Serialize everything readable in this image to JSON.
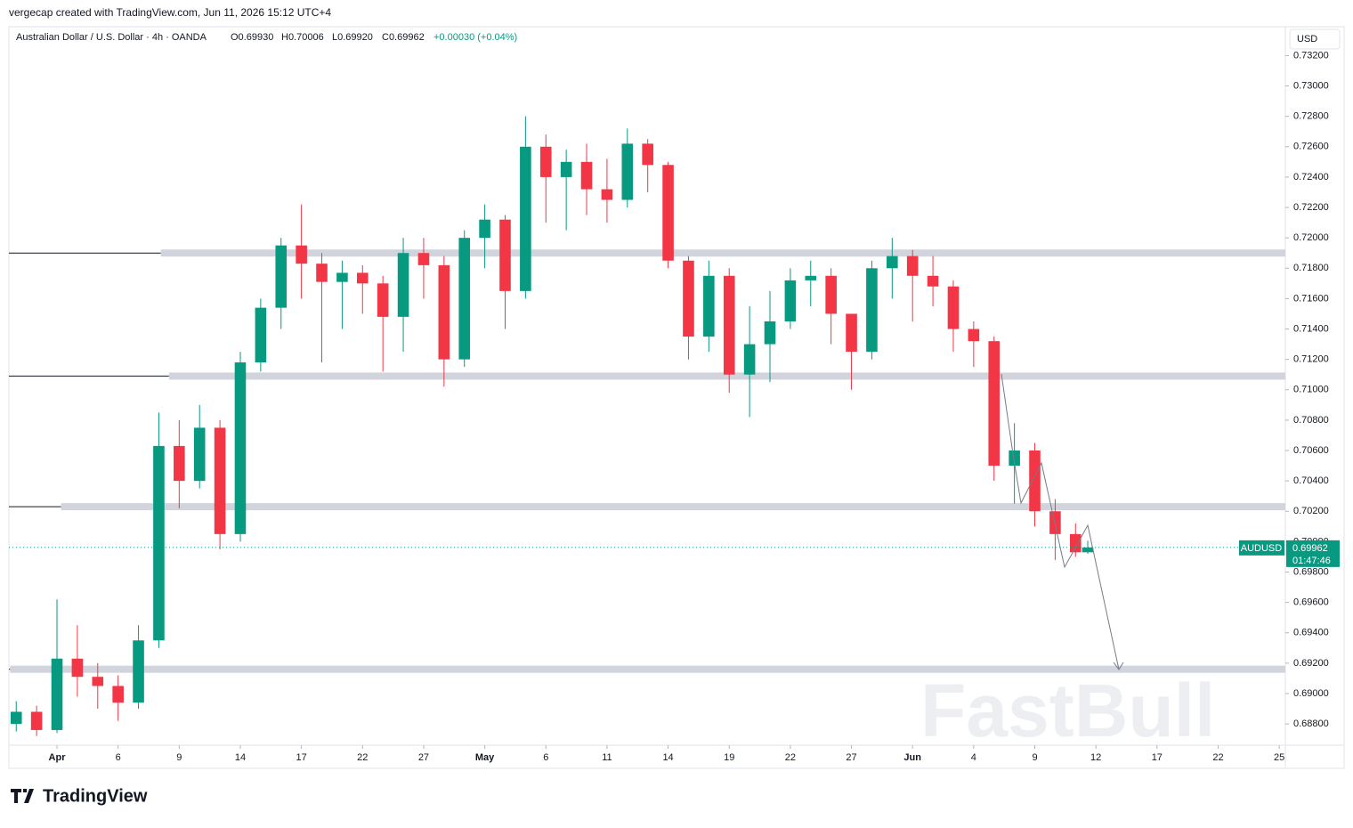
{
  "header": {
    "credit": "vergecap created with TradingView.com, Jun 11, 2026 15:12 UTC+4",
    "symbol": "Australian Dollar / U.S. Dollar · 4h · OANDA",
    "o": "O0.69930",
    "h": "H0.70006",
    "l": "L0.69920",
    "c": "C0.69962",
    "change": "+0.00030 (+0.04%)",
    "currency": "USD",
    "ticker": "AUDUSD",
    "last": "0.69962",
    "countdown": "01:47:46",
    "brand": "TradingView",
    "watermark": "FastBull"
  },
  "chart_data": {
    "type": "candlestick",
    "up_color": "#089981",
    "down_color": "#f23645",
    "x": [
      -2,
      -1,
      0,
      1,
      2,
      3,
      4,
      5,
      6,
      7,
      8,
      9,
      10,
      11,
      12,
      13,
      14,
      15,
      16,
      17,
      18,
      19,
      20,
      21,
      22,
      23,
      24,
      25,
      26,
      27,
      28,
      29,
      30,
      31,
      32,
      33,
      34,
      35,
      36,
      37,
      38,
      39,
      40,
      41,
      42,
      43,
      44,
      45,
      46,
      47,
      48,
      49,
      50,
      50.6
    ],
    "open": [
      0.688,
      0.6888,
      0.6876,
      0.6923,
      0.6911,
      0.6905,
      0.6894,
      0.6935,
      0.7063,
      0.704,
      0.7075,
      0.7005,
      0.7118,
      0.7154,
      0.7195,
      0.7183,
      0.7171,
      0.7177,
      0.717,
      0.7148,
      0.719,
      0.7182,
      0.712,
      0.72,
      0.7212,
      0.7165,
      0.726,
      0.724,
      0.725,
      0.7232,
      0.7225,
      0.7262,
      0.7248,
      0.7185,
      0.7135,
      0.7175,
      0.711,
      0.713,
      0.7145,
      0.7172,
      0.7175,
      0.715,
      0.7125,
      0.718,
      0.7188,
      0.7175,
      0.7168,
      0.714,
      0.7132,
      0.705,
      0.706,
      0.702,
      0.7005,
      0.6993
    ],
    "high": [
      0.6895,
      0.6892,
      0.6962,
      0.6945,
      0.692,
      0.6912,
      0.6945,
      0.7085,
      0.708,
      0.709,
      0.708,
      0.7125,
      0.716,
      0.72,
      0.7222,
      0.719,
      0.7185,
      0.7182,
      0.7175,
      0.72,
      0.72,
      0.7188,
      0.7205,
      0.7222,
      0.7215,
      0.728,
      0.7268,
      0.7258,
      0.7262,
      0.7252,
      0.7272,
      0.7265,
      0.725,
      0.7188,
      0.7185,
      0.718,
      0.7155,
      0.7165,
      0.718,
      0.7185,
      0.718,
      0.715,
      0.7185,
      0.72,
      0.7192,
      0.7188,
      0.7172,
      0.7145,
      0.7135,
      0.7078,
      0.7065,
      0.7028,
      0.7012,
      0.70006
    ],
    "low": [
      0.6875,
      0.6872,
      0.6874,
      0.6898,
      0.689,
      0.6882,
      0.689,
      0.693,
      0.7022,
      0.7035,
      0.6995,
      0.7,
      0.7112,
      0.714,
      0.716,
      0.7118,
      0.714,
      0.715,
      0.7112,
      0.7125,
      0.716,
      0.7102,
      0.7115,
      0.718,
      0.714,
      0.716,
      0.721,
      0.7205,
      0.7215,
      0.721,
      0.722,
      0.723,
      0.718,
      0.712,
      0.7125,
      0.7098,
      0.7082,
      0.7105,
      0.714,
      0.7155,
      0.713,
      0.71,
      0.712,
      0.716,
      0.7145,
      0.7155,
      0.7125,
      0.7115,
      0.704,
      0.7025,
      0.701,
      0.6988,
      0.699,
      0.6992
    ],
    "close": [
      0.6888,
      0.6876,
      0.6923,
      0.6911,
      0.6905,
      0.6894,
      0.6935,
      0.7063,
      0.704,
      0.7075,
      0.7005,
      0.7118,
      0.7154,
      0.7195,
      0.7183,
      0.7171,
      0.7177,
      0.717,
      0.7148,
      0.719,
      0.7182,
      0.712,
      0.72,
      0.7212,
      0.7165,
      0.726,
      0.724,
      0.725,
      0.7232,
      0.7225,
      0.7262,
      0.7248,
      0.7185,
      0.7135,
      0.7175,
      0.711,
      0.713,
      0.7145,
      0.7172,
      0.7175,
      0.715,
      0.7125,
      0.718,
      0.7188,
      0.7175,
      0.7168,
      0.714,
      0.7132,
      0.705,
      0.706,
      0.702,
      0.7005,
      0.6993,
      0.69962
    ],
    "levels": [
      0.719,
      0.7109,
      0.7023,
      0.6916
    ],
    "level_band_start": [
      5.1,
      5.5,
      0.2,
      -2.3
    ],
    "xlim": [
      -2.36,
      60.3
    ],
    "ylim": [
      0.6866,
      0.7339
    ],
    "xticks": [
      {
        "value": 0,
        "label": "Apr"
      },
      {
        "value": 3,
        "label": "6"
      },
      {
        "value": 6,
        "label": "9"
      },
      {
        "value": 9,
        "label": "14"
      },
      {
        "value": 12,
        "label": "17"
      },
      {
        "value": 15,
        "label": "22"
      },
      {
        "value": 18,
        "label": "27"
      },
      {
        "value": 21,
        "label": "May"
      },
      {
        "value": 24,
        "label": "6"
      },
      {
        "value": 27,
        "label": "11"
      },
      {
        "value": 30,
        "label": "14"
      },
      {
        "value": 33,
        "label": "19"
      },
      {
        "value": 36,
        "label": "22"
      },
      {
        "value": 39,
        "label": "27"
      },
      {
        "value": 42,
        "label": "Jun"
      },
      {
        "value": 45,
        "label": "4"
      },
      {
        "value": 48,
        "label": "9"
      },
      {
        "value": 51,
        "label": "12"
      },
      {
        "value": 54,
        "label": "17"
      },
      {
        "value": 57,
        "label": "22"
      },
      {
        "value": 60,
        "label": "25"
      }
    ],
    "yticks": [
      {
        "value": 0.688,
        "label": "0.68800"
      },
      {
        "value": 0.69,
        "label": "0.69000"
      },
      {
        "value": 0.692,
        "label": "0.69200"
      },
      {
        "value": 0.694,
        "label": "0.69400"
      },
      {
        "value": 0.696,
        "label": "0.69600"
      },
      {
        "value": 0.698,
        "label": "0.69800"
      },
      {
        "value": 0.7,
        "label": "0.70000"
      },
      {
        "value": 0.702,
        "label": "0.70200"
      },
      {
        "value": 0.704,
        "label": "0.70400"
      },
      {
        "value": 0.706,
        "label": "0.70600"
      },
      {
        "value": 0.708,
        "label": "0.70800"
      },
      {
        "value": 0.71,
        "label": "0.71000"
      },
      {
        "value": 0.712,
        "label": "0.71200"
      },
      {
        "value": 0.714,
        "label": "0.71400"
      },
      {
        "value": 0.716,
        "label": "0.71600"
      },
      {
        "value": 0.718,
        "label": "0.71800"
      },
      {
        "value": 0.72,
        "label": "0.72000"
      },
      {
        "value": 0.722,
        "label": "0.72200"
      },
      {
        "value": 0.724,
        "label": "0.72400"
      },
      {
        "value": 0.726,
        "label": "0.72600"
      },
      {
        "value": 0.728,
        "label": "0.72800"
      },
      {
        "value": 0.73,
        "label": "0.73000"
      },
      {
        "value": 0.732,
        "label": "0.73200"
      }
    ]
  }
}
